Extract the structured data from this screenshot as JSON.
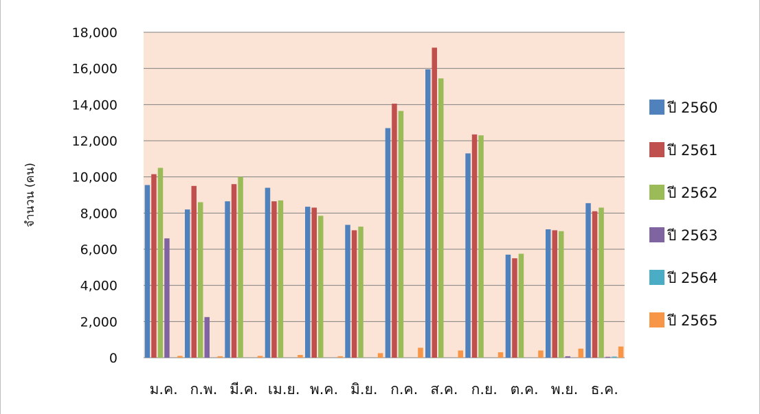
{
  "chart_data": {
    "type": "bar",
    "title": "",
    "xlabel": "",
    "ylabel": "จำนวน (คน)",
    "ylim": [
      0,
      18000
    ],
    "yticks": [
      0,
      2000,
      4000,
      6000,
      8000,
      10000,
      12000,
      14000,
      16000,
      18000
    ],
    "ytick_labels": [
      "0",
      "2,000",
      "4,000",
      "6,000",
      "8,000",
      "10,000",
      "12,000",
      "14,000",
      "16,000",
      "18,000"
    ],
    "grid": true,
    "legend_position": "right",
    "categories": [
      "ม.ค.",
      "ก.พ.",
      "มี.ค.",
      "เม.ย.",
      "พ.ค.",
      "มิ.ย.",
      "ก.ค.",
      "ส.ค.",
      "ก.ย.",
      "ต.ค.",
      "พ.ย.",
      "ธ.ค."
    ],
    "series": [
      {
        "name": "ปี 2560",
        "color": "#4f81bd",
        "values": [
          9550,
          8200,
          8650,
          9400,
          8350,
          7350,
          12700,
          15950,
          11300,
          5700,
          7100,
          8550
        ]
      },
      {
        "name": "ปี 2561",
        "color": "#c0504d",
        "values": [
          10150,
          9500,
          9600,
          8650,
          8300,
          7050,
          14050,
          17150,
          12350,
          5500,
          7050,
          8100
        ]
      },
      {
        "name": "ปี 2562",
        "color": "#9bbb59",
        "values": [
          10500,
          8600,
          10000,
          8700,
          7850,
          7250,
          13650,
          15450,
          12300,
          5750,
          7000,
          8300
        ]
      },
      {
        "name": "ปี 2563",
        "color": "#8064a2",
        "values": [
          6600,
          2250,
          0,
          0,
          0,
          0,
          0,
          0,
          0,
          0,
          80,
          50
        ]
      },
      {
        "name": "ปี 2564",
        "color": "#4bacc6",
        "values": [
          0,
          0,
          0,
          0,
          0,
          0,
          0,
          0,
          0,
          0,
          0,
          60
        ]
      },
      {
        "name": "ปี 2565",
        "color": "#f79646",
        "values": [
          100,
          80,
          100,
          150,
          80,
          250,
          550,
          400,
          300,
          400,
          500,
          620
        ]
      }
    ]
  },
  "colors": {
    "plot_background": "#fbe4d5",
    "gridline": "#7f7f7f"
  }
}
